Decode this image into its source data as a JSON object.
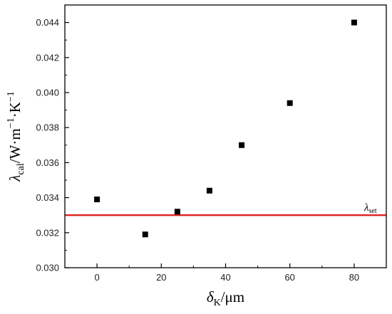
{
  "chart_data": {
    "type": "scatter",
    "title": "",
    "xlabel": {
      "symbol": "δ",
      "sub": "K",
      "unit": "/μm"
    },
    "ylabel": {
      "symbol": "λ",
      "sub": "cal",
      "unit": "/W·m",
      "exp1": "−1",
      "mid": "·K",
      "exp2": "−1"
    },
    "xlim": [
      -10,
      90
    ],
    "ylim": [
      0.03,
      0.045
    ],
    "xticks": [
      0,
      20,
      40,
      60,
      80
    ],
    "yticks": [
      0.03,
      0.032,
      0.034,
      0.036,
      0.038,
      0.04,
      0.042,
      0.044
    ],
    "ytick_labels": [
      "0.030",
      "0.032",
      "0.034",
      "0.036",
      "0.038",
      "0.040",
      "0.042",
      "0.044"
    ],
    "grid": false,
    "marker_color": "#000000",
    "series": [
      {
        "x": [
          0,
          15,
          25,
          35,
          45,
          60,
          80
        ],
        "y": [
          0.0339,
          0.0319,
          0.0332,
          0.0344,
          0.037,
          0.0394,
          0.044
        ]
      }
    ],
    "reference_line": {
      "y": 0.033,
      "color": "#e02020",
      "label": {
        "symbol": "λ",
        "sub": "set"
      }
    }
  }
}
